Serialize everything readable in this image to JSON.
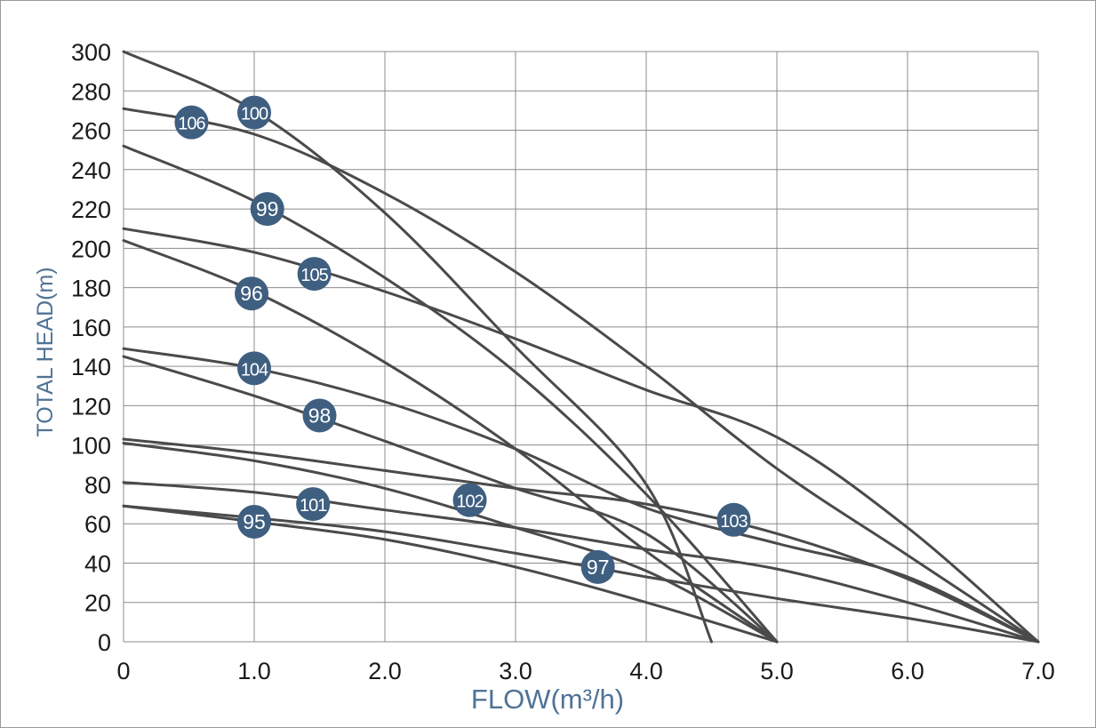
{
  "chart_data": {
    "type": "line",
    "title": "",
    "xlabel": "FLOW(m³/h)",
    "ylabel": "TOTAL HEAD(m)",
    "xlim": [
      0,
      7
    ],
    "ylim": [
      0,
      300
    ],
    "x_ticks": [
      "0",
      "1.0",
      "2.0",
      "3.0",
      "4.0",
      "5.0",
      "6.0",
      "7.0"
    ],
    "y_ticks": [
      "0",
      "20",
      "40",
      "60",
      "80",
      "100",
      "120",
      "140",
      "160",
      "180",
      "200",
      "220",
      "240",
      "260",
      "280",
      "300"
    ],
    "grid": true,
    "legend": "none",
    "colors": {
      "curve": "#4a4a4a",
      "label_fill": "#3f5f80",
      "axis_title": "#4f7396",
      "grid": "#8c8c8c"
    },
    "series": [
      {
        "label": "100",
        "label_at": [
          1.0,
          269
        ],
        "points": [
          [
            0,
            300
          ],
          [
            1.0,
            270
          ],
          [
            2.0,
            218
          ],
          [
            3.0,
            150
          ],
          [
            4.0,
            80
          ],
          [
            4.5,
            0
          ]
        ]
      },
      {
        "label": "106",
        "label_at": [
          0.52,
          264
        ],
        "points": [
          [
            0,
            271
          ],
          [
            1.0,
            258
          ],
          [
            2.0,
            228
          ],
          [
            3.0,
            188
          ],
          [
            4.0,
            140
          ],
          [
            5.0,
            88
          ],
          [
            6.0,
            44
          ],
          [
            7.0,
            0
          ]
        ]
      },
      {
        "label": "99",
        "label_at": [
          1.1,
          220
        ],
        "points": [
          [
            0,
            252
          ],
          [
            1.0,
            224
          ],
          [
            2.0,
            185
          ],
          [
            3.0,
            137
          ],
          [
            4.0,
            75
          ],
          [
            5.0,
            0
          ]
        ]
      },
      {
        "label": "105",
        "label_at": [
          1.46,
          187
        ],
        "points": [
          [
            0,
            210
          ],
          [
            1.0,
            198
          ],
          [
            2.0,
            178
          ],
          [
            3.0,
            154
          ],
          [
            4.0,
            128
          ],
          [
            5.0,
            104
          ],
          [
            6.0,
            58
          ],
          [
            7.0,
            0
          ]
        ]
      },
      {
        "label": "96",
        "label_at": [
          0.98,
          177
        ],
        "points": [
          [
            0,
            204
          ],
          [
            1.0,
            178
          ],
          [
            2.0,
            142
          ],
          [
            3.0,
            98
          ],
          [
            4.0,
            46
          ],
          [
            5.0,
            0
          ]
        ]
      },
      {
        "label": "104",
        "label_at": [
          1.0,
          139
        ],
        "points": [
          [
            0,
            149
          ],
          [
            1.0,
            139
          ],
          [
            2.0,
            122
          ],
          [
            3.0,
            98
          ],
          [
            4.0,
            68
          ],
          [
            5.0,
            50
          ],
          [
            6.0,
            33
          ],
          [
            7.0,
            0
          ]
        ]
      },
      {
        "label": "98",
        "label_at": [
          1.5,
          115
        ],
        "points": [
          [
            0,
            145
          ],
          [
            1.0,
            125
          ],
          [
            2.0,
            102
          ],
          [
            3.0,
            78
          ],
          [
            4.0,
            55
          ],
          [
            5.0,
            0
          ]
        ]
      },
      {
        "label": "103",
        "label_at": [
          4.67,
          62
        ],
        "points": [
          [
            0,
            103
          ],
          [
            1.0,
            96
          ],
          [
            2.0,
            87
          ],
          [
            3.0,
            78
          ],
          [
            4.0,
            70
          ],
          [
            5.0,
            55
          ],
          [
            6.0,
            32
          ],
          [
            7.0,
            0
          ]
        ]
      },
      {
        "label": "102",
        "label_at": [
          2.65,
          72
        ],
        "points": [
          [
            0,
            101
          ],
          [
            1.0,
            92
          ],
          [
            2.0,
            78
          ],
          [
            3.0,
            58
          ],
          [
            4.0,
            36
          ],
          [
            5.0,
            0
          ]
        ]
      },
      {
        "label": "101",
        "label_at": [
          1.45,
          70
        ],
        "points": [
          [
            0,
            81
          ],
          [
            1.0,
            76
          ],
          [
            2.0,
            67
          ],
          [
            3.0,
            58
          ],
          [
            4.0,
            47
          ],
          [
            5.0,
            37
          ],
          [
            6.0,
            20
          ],
          [
            7.0,
            0
          ]
        ]
      },
      {
        "label": "97",
        "label_at": [
          3.63,
          38
        ],
        "points": [
          [
            0,
            69
          ],
          [
            1.0,
            61
          ],
          [
            2.0,
            52
          ],
          [
            3.0,
            38
          ],
          [
            4.0,
            20
          ],
          [
            5.0,
            0
          ]
        ]
      },
      {
        "label": "95",
        "label_at": [
          1.0,
          61
        ],
        "points": [
          [
            0,
            69
          ],
          [
            1.0,
            63
          ],
          [
            2.0,
            56
          ],
          [
            3.0,
            45
          ],
          [
            4.0,
            33
          ],
          [
            5.0,
            22
          ],
          [
            6.0,
            12
          ],
          [
            7.0,
            0
          ]
        ]
      }
    ]
  }
}
